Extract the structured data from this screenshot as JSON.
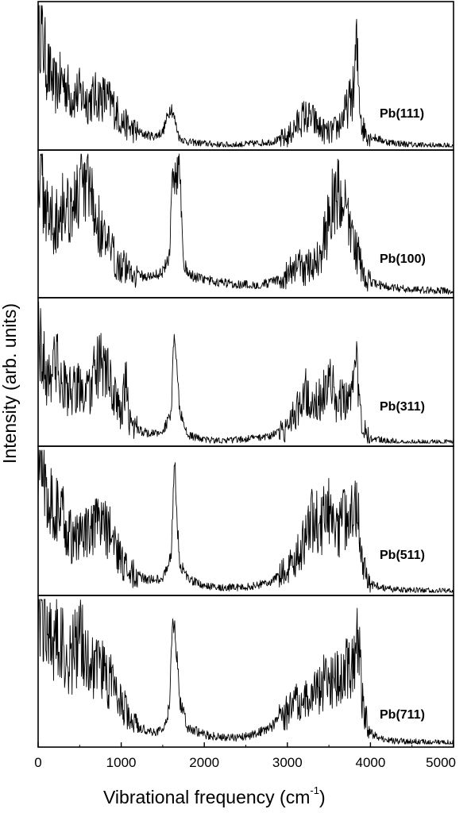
{
  "chart_data": {
    "type": "line",
    "xlabel": "Vibrational frequency (cm",
    "xlabel_superscript": "-1",
    "xlabel_close": ")",
    "ylabel": "Intensity (arb. units)",
    "xlim": [
      0,
      5000
    ],
    "x_ticks": [
      {
        "value": 0,
        "label": "0"
      },
      {
        "value": 1000,
        "label": "1000"
      },
      {
        "value": 2000,
        "label": "2000"
      },
      {
        "value": 3000,
        "label": "3000"
      },
      {
        "value": 4000,
        "label": "4000"
      },
      {
        "value": 5000,
        "label": "5000"
      }
    ],
    "grid": false,
    "legend": "none",
    "line_color": "#000000",
    "panels": [
      {
        "label": "Pb(111)",
        "ylim": [
          0,
          1
        ],
        "x": [
          0,
          100,
          200,
          300,
          400,
          500,
          600,
          700,
          800,
          900,
          1000,
          1100,
          1200,
          1300,
          1400,
          1500,
          1600,
          1650,
          1700,
          1800,
          2000,
          2200,
          2400,
          2600,
          2800,
          3000,
          3100,
          3200,
          3300,
          3400,
          3500,
          3600,
          3700,
          3800,
          3830,
          3860,
          3900,
          4000,
          4200,
          4500,
          5000
        ],
        "values": [
          0.98,
          0.58,
          0.42,
          0.48,
          0.36,
          0.38,
          0.33,
          0.36,
          0.35,
          0.3,
          0.19,
          0.14,
          0.11,
          0.09,
          0.08,
          0.11,
          0.3,
          0.18,
          0.07,
          0.04,
          0.03,
          0.02,
          0.02,
          0.03,
          0.04,
          0.07,
          0.15,
          0.22,
          0.2,
          0.13,
          0.1,
          0.14,
          0.25,
          0.4,
          0.72,
          0.42,
          0.14,
          0.08,
          0.04,
          0.02,
          0.01
        ]
      },
      {
        "label": "Pb(100)",
        "ylim": [
          0,
          1
        ],
        "x": [
          0,
          100,
          200,
          300,
          400,
          500,
          600,
          700,
          800,
          900,
          1000,
          1100,
          1200,
          1300,
          1400,
          1500,
          1580,
          1620,
          1660,
          1700,
          1750,
          1800,
          2000,
          2200,
          2400,
          2600,
          2800,
          2900,
          3000,
          3100,
          3200,
          3300,
          3400,
          3500,
          3600,
          3700,
          3800,
          3900,
          4000,
          4200,
          4500,
          5000
        ],
        "values": [
          0.95,
          0.62,
          0.52,
          0.66,
          0.62,
          0.72,
          0.74,
          0.55,
          0.38,
          0.28,
          0.22,
          0.18,
          0.15,
          0.13,
          0.14,
          0.17,
          0.28,
          0.85,
          0.82,
          0.96,
          0.25,
          0.15,
          0.11,
          0.09,
          0.08,
          0.07,
          0.09,
          0.11,
          0.14,
          0.22,
          0.18,
          0.22,
          0.3,
          0.52,
          0.78,
          0.56,
          0.4,
          0.18,
          0.09,
          0.06,
          0.04,
          0.03
        ]
      },
      {
        "label": "Pb(311)",
        "ylim": [
          0,
          1
        ],
        "x": [
          0,
          100,
          200,
          300,
          400,
          500,
          600,
          700,
          800,
          900,
          1000,
          1060,
          1100,
          1200,
          1300,
          1400,
          1500,
          1600,
          1640,
          1700,
          1800,
          2000,
          2200,
          2400,
          2600,
          2800,
          3000,
          3100,
          3200,
          3300,
          3400,
          3500,
          3600,
          3700,
          3800,
          3840,
          3900,
          4000,
          4200,
          4500,
          5000
        ],
        "values": [
          0.82,
          0.45,
          0.6,
          0.42,
          0.35,
          0.4,
          0.34,
          0.52,
          0.55,
          0.35,
          0.22,
          0.42,
          0.16,
          0.1,
          0.08,
          0.07,
          0.09,
          0.2,
          0.8,
          0.25,
          0.06,
          0.03,
          0.02,
          0.03,
          0.04,
          0.06,
          0.1,
          0.22,
          0.38,
          0.36,
          0.3,
          0.44,
          0.3,
          0.34,
          0.4,
          0.58,
          0.12,
          0.04,
          0.02,
          0.01,
          0.01
        ]
      },
      {
        "label": "Pb(511)",
        "ylim": [
          0,
          1
        ],
        "x": [
          0,
          100,
          200,
          300,
          400,
          500,
          600,
          700,
          800,
          900,
          1000,
          1100,
          1200,
          1300,
          1400,
          1500,
          1600,
          1640,
          1700,
          1800,
          2000,
          2200,
          2400,
          2600,
          2800,
          3000,
          3100,
          3200,
          3300,
          3400,
          3500,
          3600,
          3700,
          3800,
          3850,
          3900,
          4000,
          4200,
          4500,
          5000
        ],
        "values": [
          0.95,
          0.75,
          0.6,
          0.52,
          0.38,
          0.4,
          0.42,
          0.45,
          0.48,
          0.38,
          0.22,
          0.15,
          0.12,
          0.1,
          0.09,
          0.11,
          0.25,
          0.92,
          0.22,
          0.1,
          0.05,
          0.04,
          0.04,
          0.05,
          0.08,
          0.16,
          0.26,
          0.35,
          0.52,
          0.48,
          0.58,
          0.45,
          0.52,
          0.72,
          0.55,
          0.25,
          0.06,
          0.03,
          0.02,
          0.01
        ]
      },
      {
        "label": "Pb(711)",
        "ylim": [
          0,
          1
        ],
        "x": [
          0,
          100,
          200,
          300,
          400,
          500,
          600,
          700,
          800,
          900,
          1000,
          1100,
          1200,
          1300,
          1400,
          1500,
          1580,
          1620,
          1660,
          1700,
          1800,
          2000,
          2200,
          2400,
          2600,
          2800,
          3000,
          3100,
          3200,
          3300,
          3400,
          3500,
          3600,
          3700,
          3800,
          3860,
          3900,
          4000,
          4200,
          4500,
          5000
        ],
        "values": [
          0.98,
          0.85,
          0.75,
          0.65,
          0.6,
          0.72,
          0.62,
          0.55,
          0.48,
          0.4,
          0.28,
          0.18,
          0.12,
          0.1,
          0.09,
          0.1,
          0.25,
          0.88,
          0.7,
          0.32,
          0.12,
          0.07,
          0.05,
          0.05,
          0.07,
          0.12,
          0.22,
          0.28,
          0.3,
          0.33,
          0.38,
          0.48,
          0.46,
          0.55,
          0.5,
          0.75,
          0.3,
          0.08,
          0.03,
          0.02,
          0.01
        ]
      }
    ]
  }
}
